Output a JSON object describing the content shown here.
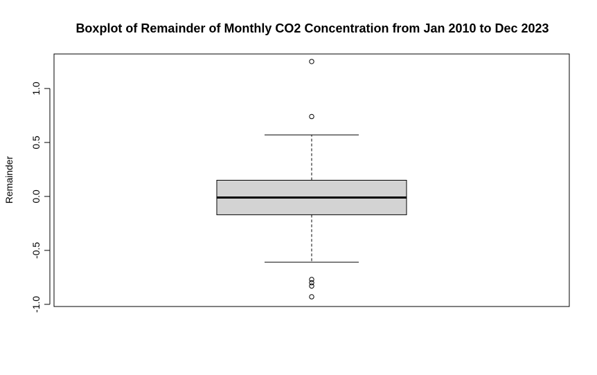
{
  "chart_data": {
    "type": "boxplot",
    "title": "Boxplot of Remainder of Monthly CO2 Concentration from Jan 2010 to Dec 2023",
    "xlabel": "",
    "ylabel": "Remainder",
    "ylim": [
      -1.02,
      1.32
    ],
    "yticks": [
      -1.0,
      -0.5,
      0.0,
      0.5,
      1.0
    ],
    "ytick_labels": [
      "-1.0",
      "-0.5",
      "0.0",
      "0.5",
      "1.0"
    ],
    "grid": false,
    "box": {
      "whisker_low": -0.61,
      "q1": -0.17,
      "median": -0.01,
      "q3": 0.15,
      "whisker_high": 0.57
    },
    "outliers": [
      1.25,
      0.74,
      -0.77,
      -0.8,
      -0.83,
      -0.93
    ],
    "colors": {
      "box_fill": "#d3d3d3",
      "stroke": "#000000"
    }
  }
}
